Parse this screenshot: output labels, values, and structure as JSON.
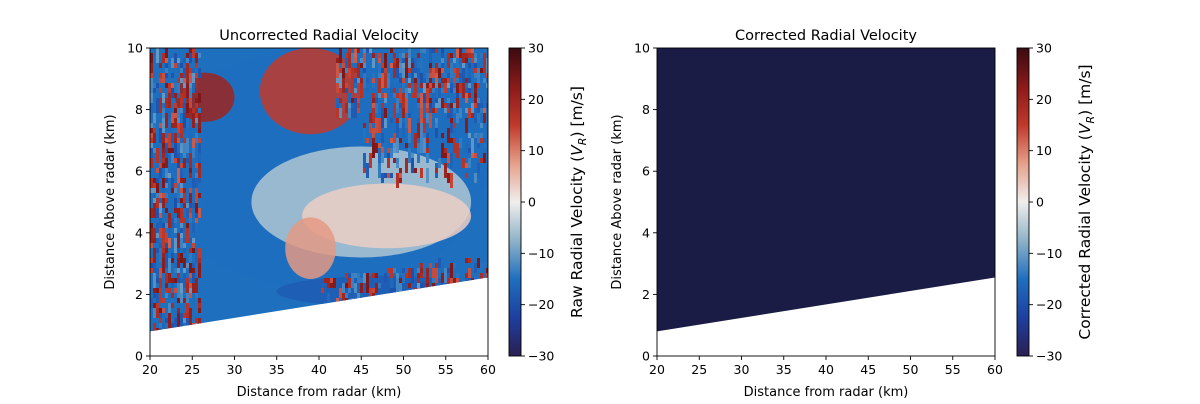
{
  "chart_data": [
    {
      "type": "heatmap",
      "title": "Uncorrected Radial Velocity",
      "xlabel": "Distance from radar (km)",
      "ylabel": "Distance Above radar  (km)",
      "xlim": [
        20,
        60
      ],
      "ylim": [
        0,
        10
      ],
      "xticks": [
        20,
        25,
        30,
        35,
        40,
        45,
        50,
        55,
        60
      ],
      "yticks": [
        0,
        2,
        4,
        6,
        8,
        10
      ],
      "data_bottom_edge": {
        "x": [
          20,
          60
        ],
        "y": [
          0.8,
          2.55
        ]
      },
      "colorbar": {
        "label": "Raw Radial Velocity ($V_R$) [m/s]",
        "min": -30,
        "max": 30,
        "ticks": [
          -30,
          -20,
          -10,
          0,
          10,
          20,
          30
        ],
        "colormap": [
          "#2a1f52",
          "#1e3fa0",
          "#1f6fbf",
          "#8fb3c8",
          "#f0eeec",
          "#e6a08a",
          "#c0392b",
          "#8a1a1a",
          "#3b0a10"
        ]
      },
      "regions": [
        {
          "x": [
            20,
            60
          ],
          "y": [
            2.2,
            10
          ],
          "value": -15
        },
        {
          "x": [
            23,
            30
          ],
          "y": [
            7.6,
            9.2
          ],
          "value": 20
        },
        {
          "x": [
            33,
            45
          ],
          "y": [
            7.2,
            10
          ],
          "value": 15
        },
        {
          "x": [
            32,
            58
          ],
          "y": [
            3.2,
            6.8
          ],
          "value": -5
        },
        {
          "x": [
            38,
            58
          ],
          "y": [
            3.5,
            5.6
          ],
          "value": 3
        },
        {
          "x": [
            36,
            42
          ],
          "y": [
            2.5,
            4.5
          ],
          "value": 8
        },
        {
          "x": [
            35,
            60
          ],
          "y": [
            1.6,
            2.6
          ],
          "value": -18
        }
      ]
    },
    {
      "type": "heatmap",
      "title": "Corrected Radial Velocity",
      "xlabel": "Distance from radar (km)",
      "ylabel": "Distance Above radar  (km)",
      "xlim": [
        20,
        60
      ],
      "ylim": [
        0,
        10
      ],
      "xticks": [
        20,
        25,
        30,
        35,
        40,
        45,
        50,
        55,
        60
      ],
      "yticks": [
        0,
        2,
        4,
        6,
        8,
        10
      ],
      "data_bottom_edge": {
        "x": [
          20,
          60
        ],
        "y": [
          0.8,
          2.55
        ]
      },
      "fill_color": "#1a1c45",
      "colorbar": {
        "label": "Corrected Radial Velocity ($V_R$) [m/s]",
        "min": -30,
        "max": 30,
        "ticks": [
          -30,
          -20,
          -10,
          0,
          10,
          20,
          30
        ],
        "colormap": [
          "#2a1f52",
          "#1e3fa0",
          "#1f6fbf",
          "#8fb3c8",
          "#f0eeec",
          "#e6a08a",
          "#c0392b",
          "#8a1a1a",
          "#3b0a10"
        ]
      }
    }
  ]
}
